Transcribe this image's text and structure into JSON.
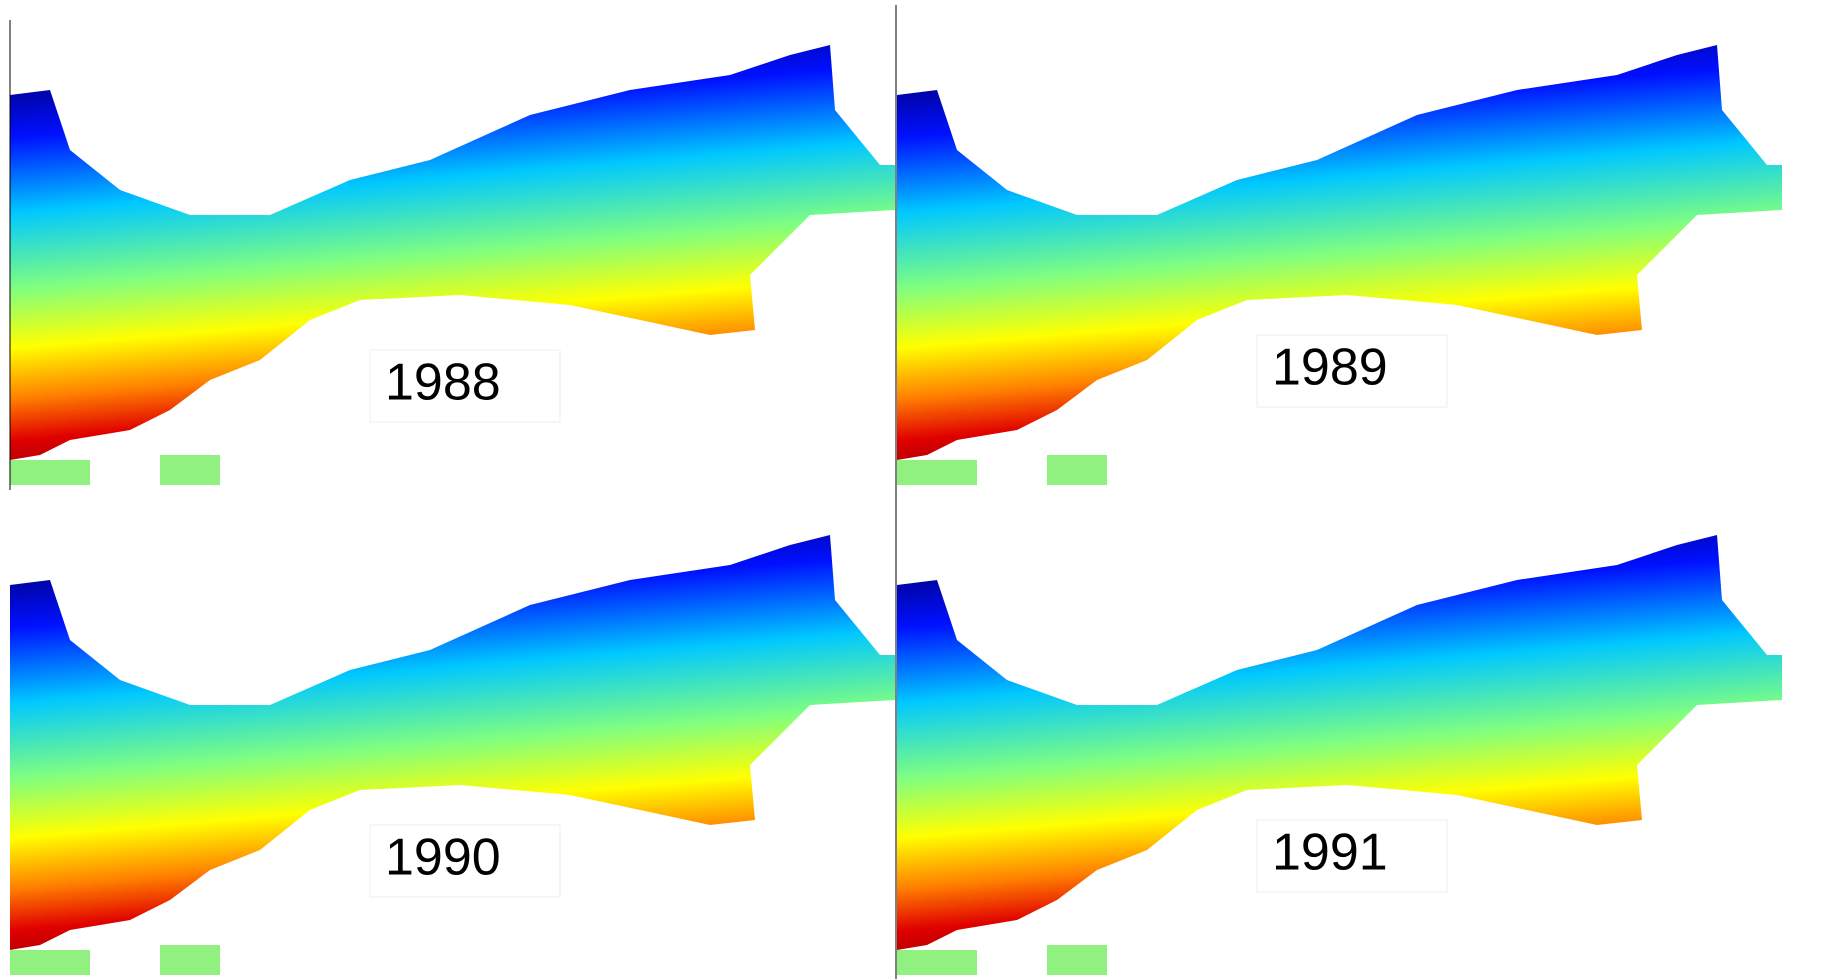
{
  "panels": [
    {
      "label": "1988"
    },
    {
      "label": "1989"
    },
    {
      "label": "1990"
    },
    {
      "label": "1991"
    }
  ]
}
